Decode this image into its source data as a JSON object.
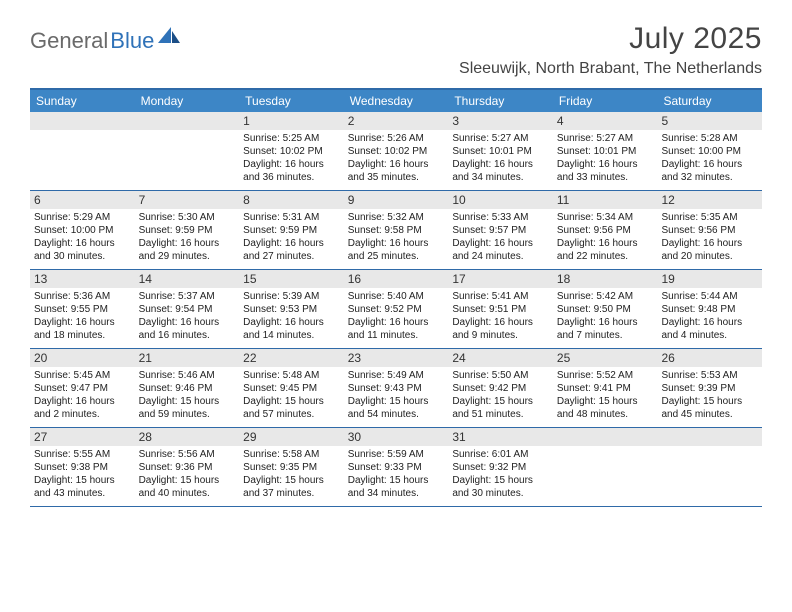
{
  "brand": {
    "part1": "General",
    "part2": "Blue"
  },
  "title": "July 2025",
  "location": "Sleeuwijk, North Brabant, The Netherlands",
  "colors": {
    "header_bg": "#3d86c6",
    "border": "#2f6aa8",
    "daynum_bg": "#e8e8e8",
    "page_bg": "#ffffff",
    "text": "#333333",
    "logo_gray": "#6a6a6a",
    "logo_blue": "#2f72b8"
  },
  "day_names": [
    "Sunday",
    "Monday",
    "Tuesday",
    "Wednesday",
    "Thursday",
    "Friday",
    "Saturday"
  ],
  "weeks": [
    [
      null,
      null,
      {
        "n": "1",
        "sunrise": "5:25 AM",
        "sunset": "10:02 PM",
        "daylight": "16 hours and 36 minutes."
      },
      {
        "n": "2",
        "sunrise": "5:26 AM",
        "sunset": "10:02 PM",
        "daylight": "16 hours and 35 minutes."
      },
      {
        "n": "3",
        "sunrise": "5:27 AM",
        "sunset": "10:01 PM",
        "daylight": "16 hours and 34 minutes."
      },
      {
        "n": "4",
        "sunrise": "5:27 AM",
        "sunset": "10:01 PM",
        "daylight": "16 hours and 33 minutes."
      },
      {
        "n": "5",
        "sunrise": "5:28 AM",
        "sunset": "10:00 PM",
        "daylight": "16 hours and 32 minutes."
      }
    ],
    [
      {
        "n": "6",
        "sunrise": "5:29 AM",
        "sunset": "10:00 PM",
        "daylight": "16 hours and 30 minutes."
      },
      {
        "n": "7",
        "sunrise": "5:30 AM",
        "sunset": "9:59 PM",
        "daylight": "16 hours and 29 minutes."
      },
      {
        "n": "8",
        "sunrise": "5:31 AM",
        "sunset": "9:59 PM",
        "daylight": "16 hours and 27 minutes."
      },
      {
        "n": "9",
        "sunrise": "5:32 AM",
        "sunset": "9:58 PM",
        "daylight": "16 hours and 25 minutes."
      },
      {
        "n": "10",
        "sunrise": "5:33 AM",
        "sunset": "9:57 PM",
        "daylight": "16 hours and 24 minutes."
      },
      {
        "n": "11",
        "sunrise": "5:34 AM",
        "sunset": "9:56 PM",
        "daylight": "16 hours and 22 minutes."
      },
      {
        "n": "12",
        "sunrise": "5:35 AM",
        "sunset": "9:56 PM",
        "daylight": "16 hours and 20 minutes."
      }
    ],
    [
      {
        "n": "13",
        "sunrise": "5:36 AM",
        "sunset": "9:55 PM",
        "daylight": "16 hours and 18 minutes."
      },
      {
        "n": "14",
        "sunrise": "5:37 AM",
        "sunset": "9:54 PM",
        "daylight": "16 hours and 16 minutes."
      },
      {
        "n": "15",
        "sunrise": "5:39 AM",
        "sunset": "9:53 PM",
        "daylight": "16 hours and 14 minutes."
      },
      {
        "n": "16",
        "sunrise": "5:40 AM",
        "sunset": "9:52 PM",
        "daylight": "16 hours and 11 minutes."
      },
      {
        "n": "17",
        "sunrise": "5:41 AM",
        "sunset": "9:51 PM",
        "daylight": "16 hours and 9 minutes."
      },
      {
        "n": "18",
        "sunrise": "5:42 AM",
        "sunset": "9:50 PM",
        "daylight": "16 hours and 7 minutes."
      },
      {
        "n": "19",
        "sunrise": "5:44 AM",
        "sunset": "9:48 PM",
        "daylight": "16 hours and 4 minutes."
      }
    ],
    [
      {
        "n": "20",
        "sunrise": "5:45 AM",
        "sunset": "9:47 PM",
        "daylight": "16 hours and 2 minutes."
      },
      {
        "n": "21",
        "sunrise": "5:46 AM",
        "sunset": "9:46 PM",
        "daylight": "15 hours and 59 minutes."
      },
      {
        "n": "22",
        "sunrise": "5:48 AM",
        "sunset": "9:45 PM",
        "daylight": "15 hours and 57 minutes."
      },
      {
        "n": "23",
        "sunrise": "5:49 AM",
        "sunset": "9:43 PM",
        "daylight": "15 hours and 54 minutes."
      },
      {
        "n": "24",
        "sunrise": "5:50 AM",
        "sunset": "9:42 PM",
        "daylight": "15 hours and 51 minutes."
      },
      {
        "n": "25",
        "sunrise": "5:52 AM",
        "sunset": "9:41 PM",
        "daylight": "15 hours and 48 minutes."
      },
      {
        "n": "26",
        "sunrise": "5:53 AM",
        "sunset": "9:39 PM",
        "daylight": "15 hours and 45 minutes."
      }
    ],
    [
      {
        "n": "27",
        "sunrise": "5:55 AM",
        "sunset": "9:38 PM",
        "daylight": "15 hours and 43 minutes."
      },
      {
        "n": "28",
        "sunrise": "5:56 AM",
        "sunset": "9:36 PM",
        "daylight": "15 hours and 40 minutes."
      },
      {
        "n": "29",
        "sunrise": "5:58 AM",
        "sunset": "9:35 PM",
        "daylight": "15 hours and 37 minutes."
      },
      {
        "n": "30",
        "sunrise": "5:59 AM",
        "sunset": "9:33 PM",
        "daylight": "15 hours and 34 minutes."
      },
      {
        "n": "31",
        "sunrise": "6:01 AM",
        "sunset": "9:32 PM",
        "daylight": "15 hours and 30 minutes."
      },
      null,
      null
    ]
  ],
  "labels": {
    "sunrise": "Sunrise:",
    "sunset": "Sunset:",
    "daylight": "Daylight:"
  }
}
